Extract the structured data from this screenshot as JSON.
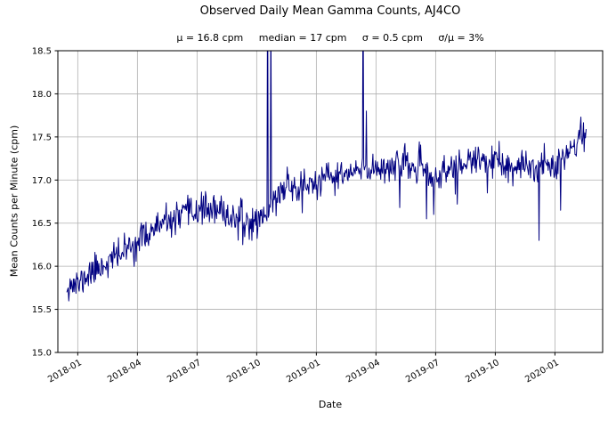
{
  "chart_data": {
    "type": "line",
    "title": "Observed Daily Mean Gamma Counts, AJ4CO",
    "subtitle": "μ = 16.8 cpm     median = 17 cpm     σ = 0.5 cpm     σ/μ = 3%",
    "stats": {
      "mu_cpm": 16.8,
      "median_cpm": 17,
      "sigma_cpm": 0.5,
      "sigma_over_mu_pct": 3
    },
    "xlabel": "Date",
    "ylabel": "Mean Counts per Minute (cpm)",
    "x_ticks": [
      "2018-01",
      "2018-04",
      "2018-07",
      "2018-10",
      "2019-01",
      "2019-04",
      "2019-07",
      "2019-10",
      "2020-01"
    ],
    "x_tick_months": [
      0,
      3,
      6,
      9,
      12,
      15,
      18,
      21,
      24
    ],
    "xlim_months": [
      -1,
      26.4
    ],
    "y_ticks": [
      "15.0",
      "15.5",
      "16.0",
      "16.5",
      "17.0",
      "17.5",
      "18.0",
      "18.5"
    ],
    "ylim": [
      15.0,
      18.5
    ],
    "grid": true,
    "grid_color": "#b0b0b0",
    "axis_color": "#000000",
    "line_color": "#000080",
    "background": "#ffffff",
    "series": [
      {
        "name": "observed-daily-mean-gamma-counts",
        "seed": 11,
        "noise_sigma": 0.09,
        "x_start": -0.55,
        "x_end": 25.6,
        "samples_per_month": 30.4,
        "trend_anchors": [
          [
            -0.55,
            15.8
          ],
          [
            0,
            15.78
          ],
          [
            0.5,
            15.9
          ],
          [
            1,
            15.98
          ],
          [
            1.5,
            16.05
          ],
          [
            2,
            16.12
          ],
          [
            2.5,
            16.2
          ],
          [
            3,
            16.28
          ],
          [
            3.5,
            16.38
          ],
          [
            4,
            16.45
          ],
          [
            4.5,
            16.5
          ],
          [
            5,
            16.55
          ],
          [
            5.5,
            16.6
          ],
          [
            6,
            16.65
          ],
          [
            6.5,
            16.68
          ],
          [
            7,
            16.62
          ],
          [
            7.5,
            16.6
          ],
          [
            8,
            16.55
          ],
          [
            8.5,
            16.5
          ],
          [
            9,
            16.55
          ],
          [
            9.5,
            16.6
          ],
          [
            10,
            16.8
          ],
          [
            10.5,
            16.95
          ],
          [
            11,
            16.9
          ],
          [
            11.5,
            16.95
          ],
          [
            12,
            16.95
          ],
          [
            12.5,
            17.0
          ],
          [
            13,
            17.05
          ],
          [
            13.5,
            17.05
          ],
          [
            14,
            17.1
          ],
          [
            14.5,
            17.1
          ],
          [
            15,
            17.15
          ],
          [
            15.5,
            17.15
          ],
          [
            16,
            17.2
          ],
          [
            16.5,
            17.15
          ],
          [
            17,
            17.15
          ],
          [
            17.5,
            17.1
          ],
          [
            18,
            17.0
          ],
          [
            18.5,
            17.1
          ],
          [
            19,
            17.15
          ],
          [
            19.5,
            17.2
          ],
          [
            20,
            17.2
          ],
          [
            20.5,
            17.25
          ],
          [
            21,
            17.2
          ],
          [
            21.5,
            17.15
          ],
          [
            22,
            17.1
          ],
          [
            22.5,
            17.15
          ],
          [
            23,
            17.15
          ],
          [
            23.5,
            17.2
          ],
          [
            24,
            17.2
          ],
          [
            24.5,
            17.3
          ],
          [
            25,
            17.4
          ],
          [
            25.6,
            17.6
          ]
        ],
        "spikes": [
          {
            "x": 9.55,
            "value": 19.6
          },
          {
            "x": 9.72,
            "value": 19.1
          },
          {
            "x": 14.35,
            "value": 19.4
          },
          {
            "x": 14.5,
            "value": 17.8
          }
        ],
        "dips": [
          {
            "x": 8.3,
            "value": 16.25
          },
          {
            "x": 8.75,
            "value": 16.3
          },
          {
            "x": 11.3,
            "value": 16.62
          },
          {
            "x": 16.2,
            "value": 16.68
          },
          {
            "x": 17.55,
            "value": 16.55
          },
          {
            "x": 17.9,
            "value": 16.6
          },
          {
            "x": 19.1,
            "value": 16.72
          },
          {
            "x": 20.6,
            "value": 16.85
          },
          {
            "x": 23.2,
            "value": 16.3
          },
          {
            "x": 24.3,
            "value": 16.65
          }
        ]
      }
    ]
  }
}
